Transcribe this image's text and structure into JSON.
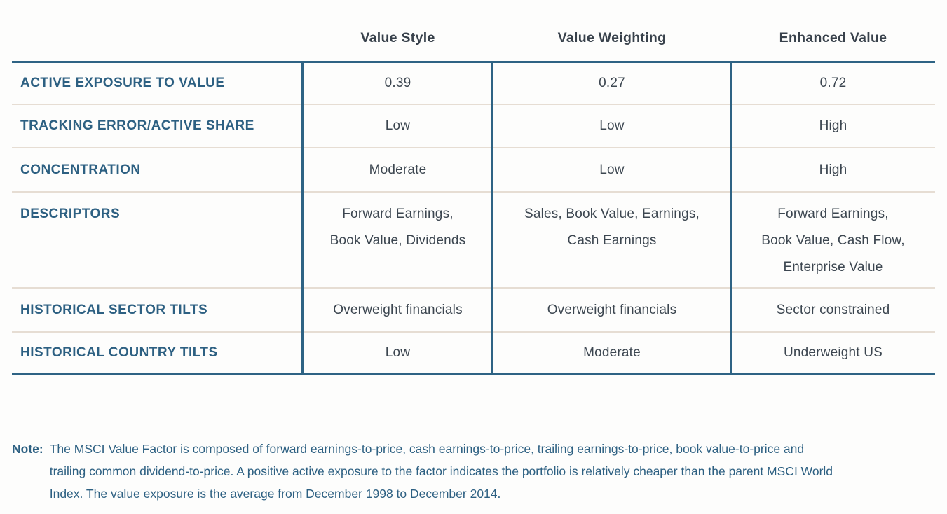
{
  "table": {
    "column_headers": [
      "Value Style",
      "Value Weighting",
      "Enhanced Value"
    ],
    "rows": [
      {
        "label": "ACTIVE EXPOSURE TO VALUE",
        "values": [
          "0.39",
          "0.27",
          "0.72"
        ]
      },
      {
        "label": "TRACKING ERROR/ACTIVE SHARE",
        "values": [
          "Low",
          "Low",
          "High"
        ]
      },
      {
        "label": "CONCENTRATION",
        "values": [
          "Moderate",
          "Low",
          "High"
        ]
      },
      {
        "label": "DESCRIPTORS",
        "values": [
          "Forward Earnings,\nBook Value, Dividends",
          "Sales, Book Value, Earnings,\nCash Earnings",
          "Forward Earnings,\nBook Value, Cash Flow,\nEnterprise Value"
        ]
      },
      {
        "label": "HISTORICAL SECTOR TILTS",
        "values": [
          "Overweight financials",
          "Overweight financials",
          "Sector constrained"
        ]
      },
      {
        "label": "HISTORICAL COUNTRY TILTS",
        "values": [
          "Low",
          "Moderate",
          "Underweight US"
        ]
      }
    ]
  },
  "note": {
    "label": "Note:",
    "text": "The MSCI Value Factor is composed of forward earnings-to-price, cash earnings-to-price, trailing earnings-to-price, book value-to-price and trailing common dividend-to-price. A positive active exposure to the factor indicates the portfolio is relatively cheaper than the parent MSCI World Index. The value exposure is the average from December 1998 to December 2014."
  },
  "colors": {
    "background": "#fdfdfc",
    "frame_blue": "#2e6384",
    "row_divider_beige": "#e6ddd3",
    "label_blue": "#2d6082",
    "header_dark": "#38414b",
    "value_dark": "#3c4650"
  }
}
